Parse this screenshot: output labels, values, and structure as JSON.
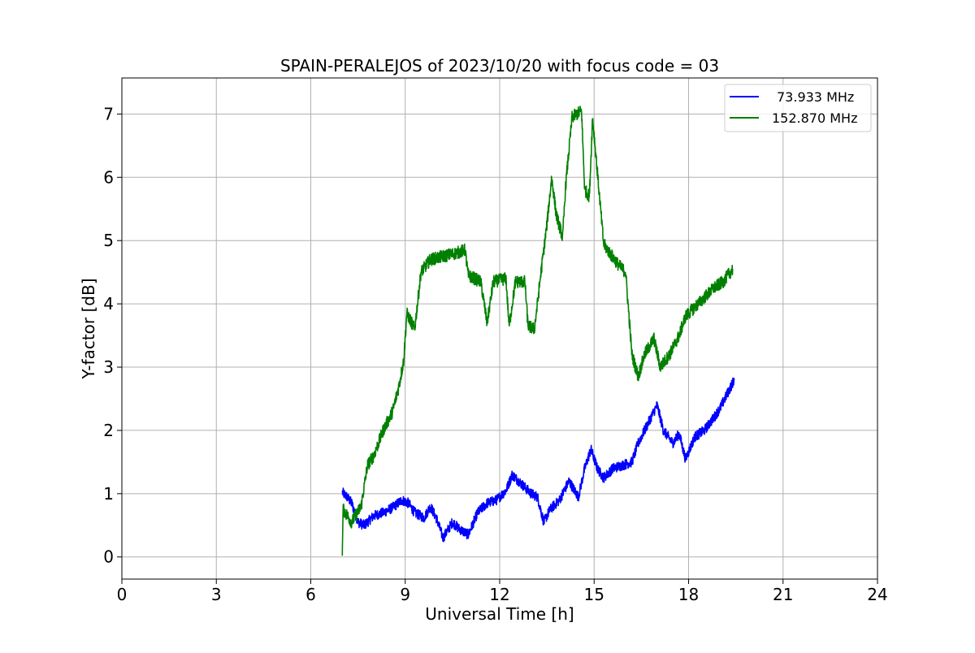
{
  "chart_data": {
    "type": "line",
    "title": "SPAIN-PERALEJOS of 2023/10/20 with focus code = 03",
    "xlabel": "Universal Time [h]",
    "ylabel": "Y-factor [dB]",
    "xlim": [
      0,
      24
    ],
    "ylim": [
      -0.35,
      7.57
    ],
    "xticks": [
      0,
      3,
      6,
      9,
      12,
      15,
      18,
      21,
      24
    ],
    "yticks": [
      0,
      1,
      2,
      3,
      4,
      5,
      6,
      7
    ],
    "grid": true,
    "legend_position": "top-right",
    "series": [
      {
        "name": "73.933 MHz",
        "color": "#0000ff",
        "noise": 0.08,
        "points": [
          [
            7.0,
            1.02
          ],
          [
            7.15,
            0.95
          ],
          [
            7.3,
            0.85
          ],
          [
            7.5,
            0.55
          ],
          [
            7.7,
            0.5
          ],
          [
            8.0,
            0.65
          ],
          [
            8.3,
            0.7
          ],
          [
            8.6,
            0.78
          ],
          [
            8.9,
            0.9
          ],
          [
            9.1,
            0.85
          ],
          [
            9.3,
            0.7
          ],
          [
            9.6,
            0.62
          ],
          [
            9.8,
            0.8
          ],
          [
            10.0,
            0.6
          ],
          [
            10.2,
            0.3
          ],
          [
            10.5,
            0.55
          ],
          [
            10.7,
            0.45
          ],
          [
            11.0,
            0.35
          ],
          [
            11.3,
            0.7
          ],
          [
            11.6,
            0.85
          ],
          [
            11.9,
            0.9
          ],
          [
            12.2,
            1.05
          ],
          [
            12.4,
            1.3
          ],
          [
            12.7,
            1.15
          ],
          [
            13.0,
            1.0
          ],
          [
            13.2,
            0.95
          ],
          [
            13.4,
            0.55
          ],
          [
            13.6,
            0.75
          ],
          [
            13.9,
            0.9
          ],
          [
            14.2,
            1.2
          ],
          [
            14.5,
            0.95
          ],
          [
            14.7,
            1.4
          ],
          [
            14.9,
            1.7
          ],
          [
            15.1,
            1.4
          ],
          [
            15.3,
            1.25
          ],
          [
            15.6,
            1.4
          ],
          [
            15.9,
            1.45
          ],
          [
            16.2,
            1.5
          ],
          [
            16.4,
            1.8
          ],
          [
            16.8,
            2.2
          ],
          [
            17.0,
            2.4
          ],
          [
            17.2,
            2.0
          ],
          [
            17.5,
            1.8
          ],
          [
            17.7,
            1.95
          ],
          [
            17.9,
            1.55
          ],
          [
            18.2,
            1.9
          ],
          [
            18.5,
            2.0
          ],
          [
            18.8,
            2.2
          ],
          [
            19.0,
            2.35
          ],
          [
            19.2,
            2.55
          ],
          [
            19.45,
            2.8
          ]
        ]
      },
      {
        "name": "152.870 MHz",
        "color": "#008000",
        "noise": 0.1,
        "points": [
          [
            7.0,
            0.02
          ],
          [
            7.03,
            0.75
          ],
          [
            7.3,
            0.55
          ],
          [
            7.6,
            0.8
          ],
          [
            7.8,
            1.45
          ],
          [
            8.0,
            1.6
          ],
          [
            8.3,
            2.0
          ],
          [
            8.6,
            2.3
          ],
          [
            8.8,
            2.7
          ],
          [
            8.95,
            3.1
          ],
          [
            9.05,
            3.85
          ],
          [
            9.3,
            3.6
          ],
          [
            9.5,
            4.5
          ],
          [
            9.8,
            4.7
          ],
          [
            10.2,
            4.75
          ],
          [
            10.6,
            4.8
          ],
          [
            10.9,
            4.85
          ],
          [
            11.0,
            4.45
          ],
          [
            11.4,
            4.35
          ],
          [
            11.6,
            3.7
          ],
          [
            11.8,
            4.35
          ],
          [
            12.2,
            4.4
          ],
          [
            12.3,
            3.65
          ],
          [
            12.5,
            4.35
          ],
          [
            12.8,
            4.35
          ],
          [
            12.9,
            3.65
          ],
          [
            13.1,
            3.6
          ],
          [
            13.2,
            4.0
          ],
          [
            13.3,
            4.45
          ],
          [
            13.5,
            5.25
          ],
          [
            13.65,
            6.0
          ],
          [
            13.8,
            5.4
          ],
          [
            14.0,
            5.05
          ],
          [
            14.1,
            5.9
          ],
          [
            14.3,
            6.95
          ],
          [
            14.6,
            7.05
          ],
          [
            14.7,
            5.8
          ],
          [
            14.85,
            5.7
          ],
          [
            14.95,
            6.95
          ],
          [
            15.1,
            6.1
          ],
          [
            15.3,
            4.95
          ],
          [
            15.5,
            4.8
          ],
          [
            15.8,
            4.6
          ],
          [
            16.0,
            4.5
          ],
          [
            16.2,
            3.2
          ],
          [
            16.4,
            2.85
          ],
          [
            16.6,
            3.2
          ],
          [
            16.9,
            3.45
          ],
          [
            17.1,
            3.0
          ],
          [
            17.4,
            3.2
          ],
          [
            17.7,
            3.5
          ],
          [
            17.9,
            3.8
          ],
          [
            18.2,
            3.95
          ],
          [
            18.5,
            4.1
          ],
          [
            18.8,
            4.25
          ],
          [
            19.1,
            4.35
          ],
          [
            19.4,
            4.55
          ]
        ]
      }
    ]
  }
}
